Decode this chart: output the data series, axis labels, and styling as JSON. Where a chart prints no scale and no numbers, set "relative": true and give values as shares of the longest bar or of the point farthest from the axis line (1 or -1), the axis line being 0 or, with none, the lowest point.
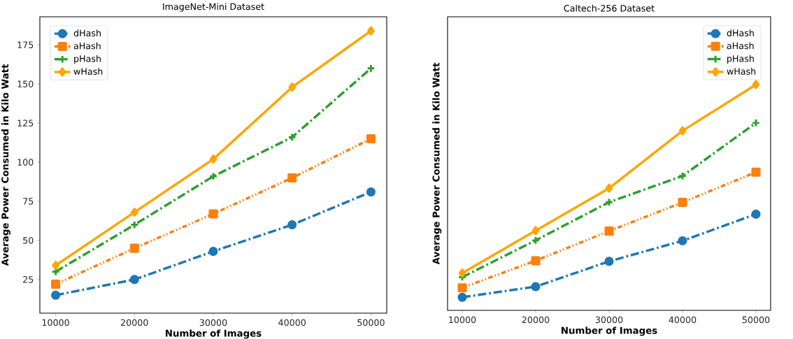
{
  "chart_data": [
    {
      "type": "line",
      "title": "ImageNet-Mini Dataset",
      "xlabel": "Number of Images",
      "ylabel": "Average Power Consumed in Kilo Watt",
      "x": [
        10000,
        20000,
        30000,
        40000,
        50000
      ],
      "xlim": [
        8000,
        52000
      ],
      "ylim": [
        3.5,
        193
      ],
      "xticks": [
        10000,
        20000,
        30000,
        40000,
        50000
      ],
      "yticks": [
        25,
        50,
        75,
        100,
        125,
        150,
        175
      ],
      "legend": "top left",
      "series": [
        {
          "name": "dHash",
          "color": "#1f77b4",
          "marker": "circle",
          "line_style": "dashed",
          "values": [
            15,
            25,
            43,
            60,
            81
          ]
        },
        {
          "name": "aHash",
          "color": "#ff7f0e",
          "marker": "square",
          "line_style": "dotted",
          "values": [
            22,
            45,
            67,
            90,
            115
          ]
        },
        {
          "name": "pHash",
          "color": "#2ca02c",
          "marker": "cross",
          "line_style": "dashed",
          "values": [
            30,
            60,
            91,
            116,
            160
          ]
        },
        {
          "name": "wHash",
          "color": "#ffa500",
          "marker": "diamond",
          "line_style": "solid",
          "values": [
            34,
            68,
            102,
            148,
            184
          ]
        }
      ]
    },
    {
      "type": "line",
      "title": "Caltech-256 Dataset",
      "xlabel": "Number of Images",
      "ylabel": "Average Power Consumed in Kilo Watt",
      "x": [
        10000,
        20000,
        30000,
        40000,
        50000
      ],
      "xlim": [
        8000,
        52000
      ],
      "xticks": [
        10000,
        20000,
        30000,
        40000,
        50000
      ],
      "relative": true,
      "tick_labels": "x",
      "legend": "top right",
      "series": [
        {
          "name": "dHash",
          "color": "#1f77b4",
          "marker": "circle",
          "line_style": "dashed",
          "values": [
            0.058,
            0.105,
            0.217,
            0.308,
            0.426
          ]
        },
        {
          "name": "aHash",
          "color": "#ff7f0e",
          "marker": "square",
          "line_style": "dotted",
          "values": [
            0.1,
            0.22,
            0.351,
            0.478,
            0.612
          ]
        },
        {
          "name": "pHash",
          "color": "#2ca02c",
          "marker": "cross",
          "line_style": "dashed",
          "values": [
            0.147,
            0.31,
            0.479,
            0.595,
            0.83
          ]
        },
        {
          "name": "wHash",
          "color": "#ffa500",
          "marker": "diamond",
          "line_style": "solid",
          "values": [
            0.165,
            0.353,
            0.541,
            0.795,
            1
          ]
        }
      ]
    }
  ]
}
